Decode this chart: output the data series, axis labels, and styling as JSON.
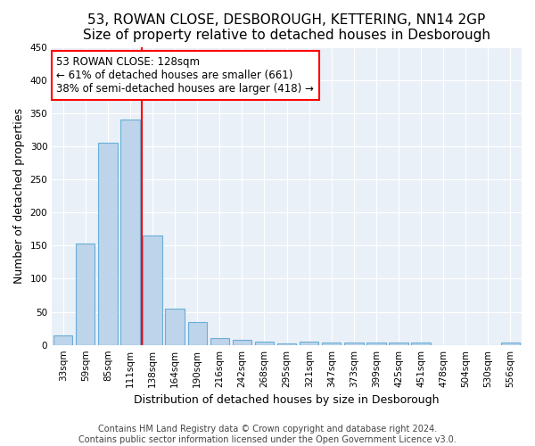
{
  "title1": "53, ROWAN CLOSE, DESBOROUGH, KETTERING, NN14 2GP",
  "title2": "Size of property relative to detached houses in Desborough",
  "xlabel": "Distribution of detached houses by size in Desborough",
  "ylabel": "Number of detached properties",
  "categories": [
    "33sqm",
    "59sqm",
    "85sqm",
    "111sqm",
    "138sqm",
    "164sqm",
    "190sqm",
    "216sqm",
    "242sqm",
    "268sqm",
    "295sqm",
    "321sqm",
    "347sqm",
    "373sqm",
    "399sqm",
    "425sqm",
    "451sqm",
    "478sqm",
    "504sqm",
    "530sqm",
    "556sqm"
  ],
  "values": [
    15,
    153,
    305,
    340,
    165,
    55,
    35,
    10,
    8,
    5,
    2,
    5,
    4,
    4,
    4,
    4,
    4,
    0,
    0,
    0,
    3
  ],
  "bar_color": "#bdd4ea",
  "bar_edge_color": "#6aaed6",
  "vline_color": "red",
  "annotation_line1": "53 ROWAN CLOSE: 128sqm",
  "annotation_line2": "← 61% of detached houses are smaller (661)",
  "annotation_line3": "38% of semi-detached houses are larger (418) →",
  "annotation_box_color": "white",
  "annotation_box_edge": "red",
  "ylim": [
    0,
    450
  ],
  "yticks": [
    0,
    50,
    100,
    150,
    200,
    250,
    300,
    350,
    400,
    450
  ],
  "footnote1": "Contains HM Land Registry data © Crown copyright and database right 2024.",
  "footnote2": "Contains public sector information licensed under the Open Government Licence v3.0.",
  "background_color": "#eaf0f8",
  "title1_fontsize": 11,
  "title2_fontsize": 10,
  "xlabel_fontsize": 9,
  "ylabel_fontsize": 9,
  "tick_fontsize": 7.5,
  "annotation_fontsize": 8.5,
  "footnote_fontsize": 7
}
